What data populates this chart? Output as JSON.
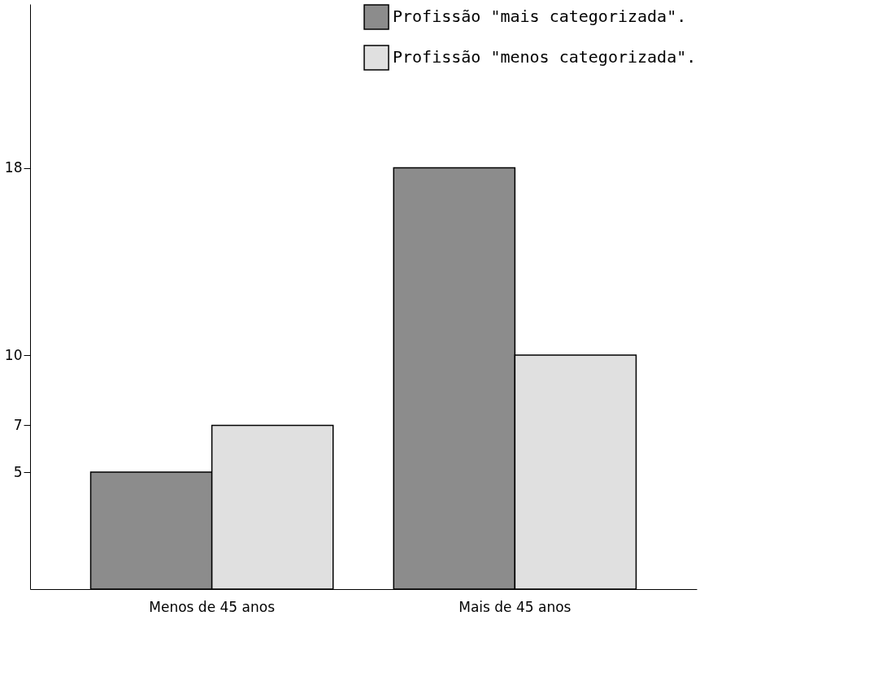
{
  "chart_data": {
    "type": "bar",
    "categories": [
      "Menos de 45 anos",
      "Mais de 45 anos"
    ],
    "series": [
      {
        "name": "Profissão \"mais categorizada\".",
        "color": "#8c8c8c",
        "values": [
          5,
          18
        ]
      },
      {
        "name": "Profissão \"menos categorizada\".",
        "color": "#e0e0e0",
        "values": [
          7,
          10
        ]
      }
    ],
    "ylim": [
      0,
      25
    ],
    "yticks": [
      5,
      7,
      10,
      18
    ],
    "grid": false,
    "legend": "top right"
  }
}
